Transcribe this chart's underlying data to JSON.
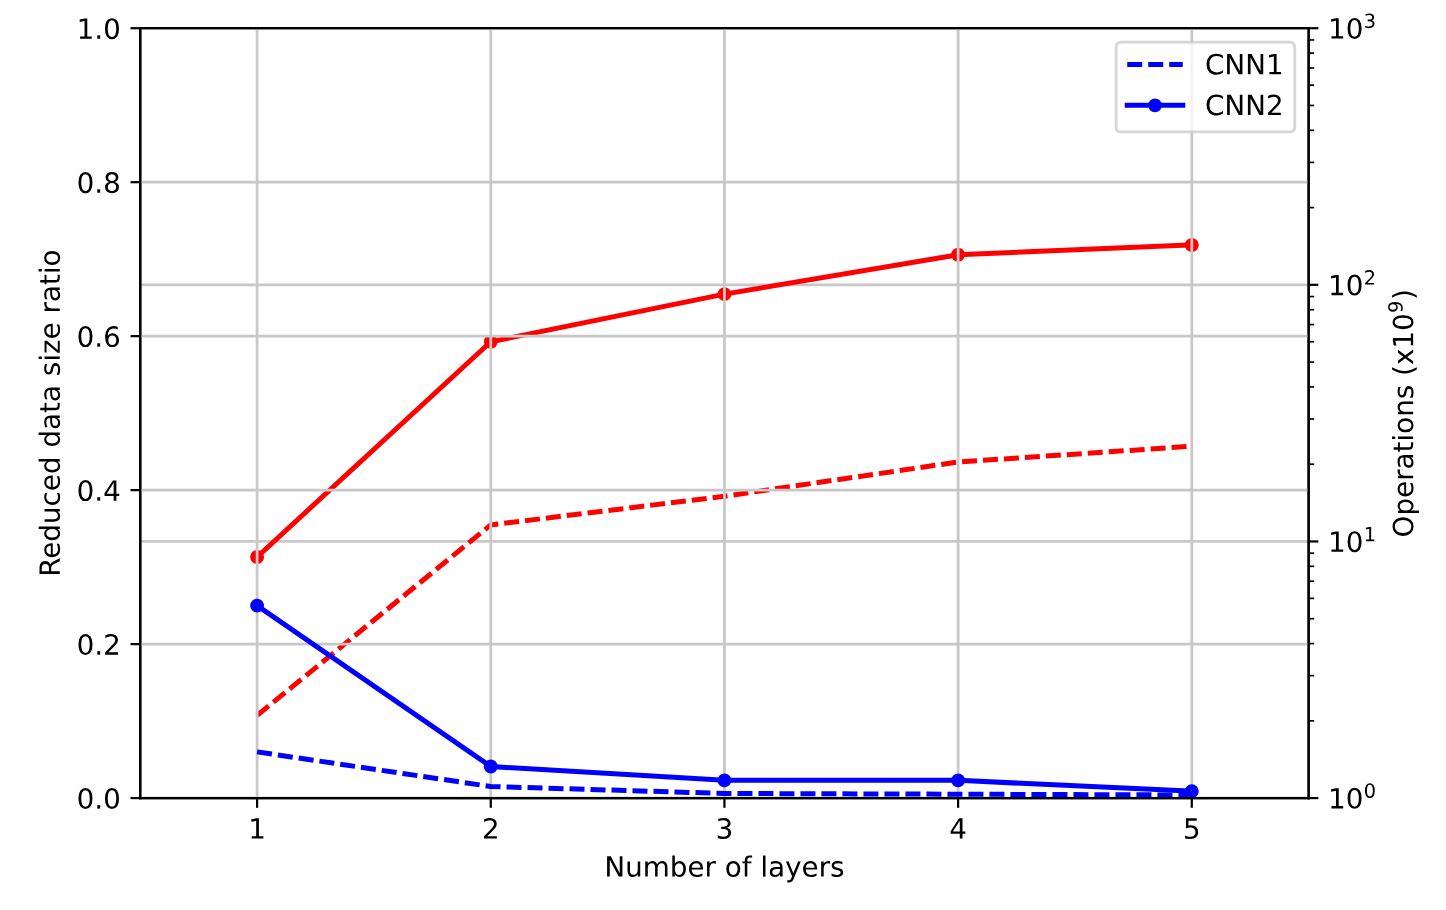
{
  "chart_data": {
    "type": "line",
    "xlabel": "Number of layers",
    "ylabel": "Reduced data size ratio",
    "y2label": "Operations (x10$^{9}$)",
    "x": [
      1,
      2,
      3,
      4,
      5
    ],
    "series": [
      {
        "name": "CNN1",
        "color": "#0000ff",
        "values": [
          0.06,
          0.015,
          0.006,
          0.005,
          0.004
        ],
        "line_style": "dashed",
        "marker": "none"
      },
      {
        "name": "CNN2",
        "color": "#0000ff",
        "values": [
          0.25,
          0.041,
          0.023,
          0.023,
          0.009
        ],
        "line_style": "solid",
        "marker": "circle"
      },
      {
        "color": "#ff0000",
        "values": [
          2.1,
          11.6,
          15,
          20.4,
          23.5
        ],
        "axis": "y2",
        "line_style": "dashed",
        "marker": "none"
      },
      {
        "color": "#ff0000",
        "values": [
          8.7,
          60,
          92,
          131,
          143
        ],
        "axis": "y2",
        "line_style": "solid",
        "marker": "circle"
      }
    ],
    "xlim": [
      0.5,
      5.5
    ],
    "xticks": [
      1,
      2,
      3,
      4,
      5
    ],
    "ylim": [
      0,
      1
    ],
    "yticks": [
      {
        "value": 0,
        "label": "0.0"
      },
      {
        "value": 0.2,
        "label": "0.2"
      },
      {
        "value": 0.4,
        "label": "0.4"
      },
      {
        "value": 0.6,
        "label": "0.6"
      },
      {
        "value": 0.8,
        "label": "0.8"
      },
      {
        "value": 1,
        "label": "1.0"
      }
    ],
    "log": "y2",
    "y2lim": [
      1,
      1000
    ],
    "y2ticks": [
      {
        "value": 1,
        "label": "10$^{0}$"
      },
      {
        "value": 10,
        "label": "10$^{1}$"
      },
      {
        "value": 100,
        "label": "10$^{2}$"
      },
      {
        "value": 1000,
        "label": "10$^{3}$"
      }
    ],
    "grid": true,
    "legend": "top right"
  }
}
